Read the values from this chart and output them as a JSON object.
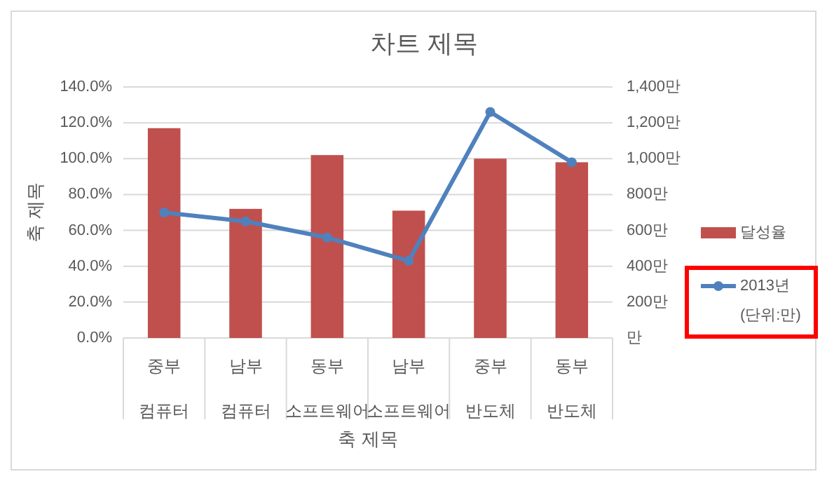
{
  "chart_data": {
    "type": "bar",
    "title": "차트 제목",
    "xlabel": "축 제목",
    "ylabel": "축 제목",
    "categories": [
      "중부\n컴퓨터",
      "남부\n컴퓨터",
      "동부\n소프트웨어",
      "남부\n소프트웨어",
      "중부\n반도체",
      "동부\n반도체"
    ],
    "series": [
      {
        "name": "달성율",
        "color": "#c0504d",
        "values": [
          1.17,
          0.72,
          1.02,
          0.71,
          1.0,
          0.98
        ]
      },
      {
        "name": "2013년\n(단위:만)",
        "type": "line",
        "axis": "y2",
        "color": "#4f81bd",
        "marker": "circle",
        "values": [
          700,
          650,
          560,
          430,
          1260,
          980
        ]
      }
    ],
    "ylim": [
      0,
      1.4
    ],
    "yticks": [
      {
        "value": 0,
        "label": "0.0%"
      },
      {
        "value": 0.2,
        "label": "20.0%"
      },
      {
        "value": 0.4,
        "label": "40.0%"
      },
      {
        "value": 0.6,
        "label": "60.0%"
      },
      {
        "value": 0.8,
        "label": "80.0%"
      },
      {
        "value": 1.0,
        "label": "100.0%"
      },
      {
        "value": 1.2,
        "label": "120.0%"
      },
      {
        "value": 1.4,
        "label": "140.0%"
      }
    ],
    "y2lim": [
      0,
      1400
    ],
    "y2ticks": [
      {
        "value": 0,
        "label": "만"
      },
      {
        "value": 200,
        "label": "200만"
      },
      {
        "value": 400,
        "label": "400만"
      },
      {
        "value": 600,
        "label": "600만"
      },
      {
        "value": 800,
        "label": "800만"
      },
      {
        "value": 1000,
        "label": "1,000만"
      },
      {
        "value": 1200,
        "label": "1,200만"
      },
      {
        "value": 1400,
        "label": "1,400만"
      }
    ],
    "grid": "y",
    "legend": "right"
  }
}
